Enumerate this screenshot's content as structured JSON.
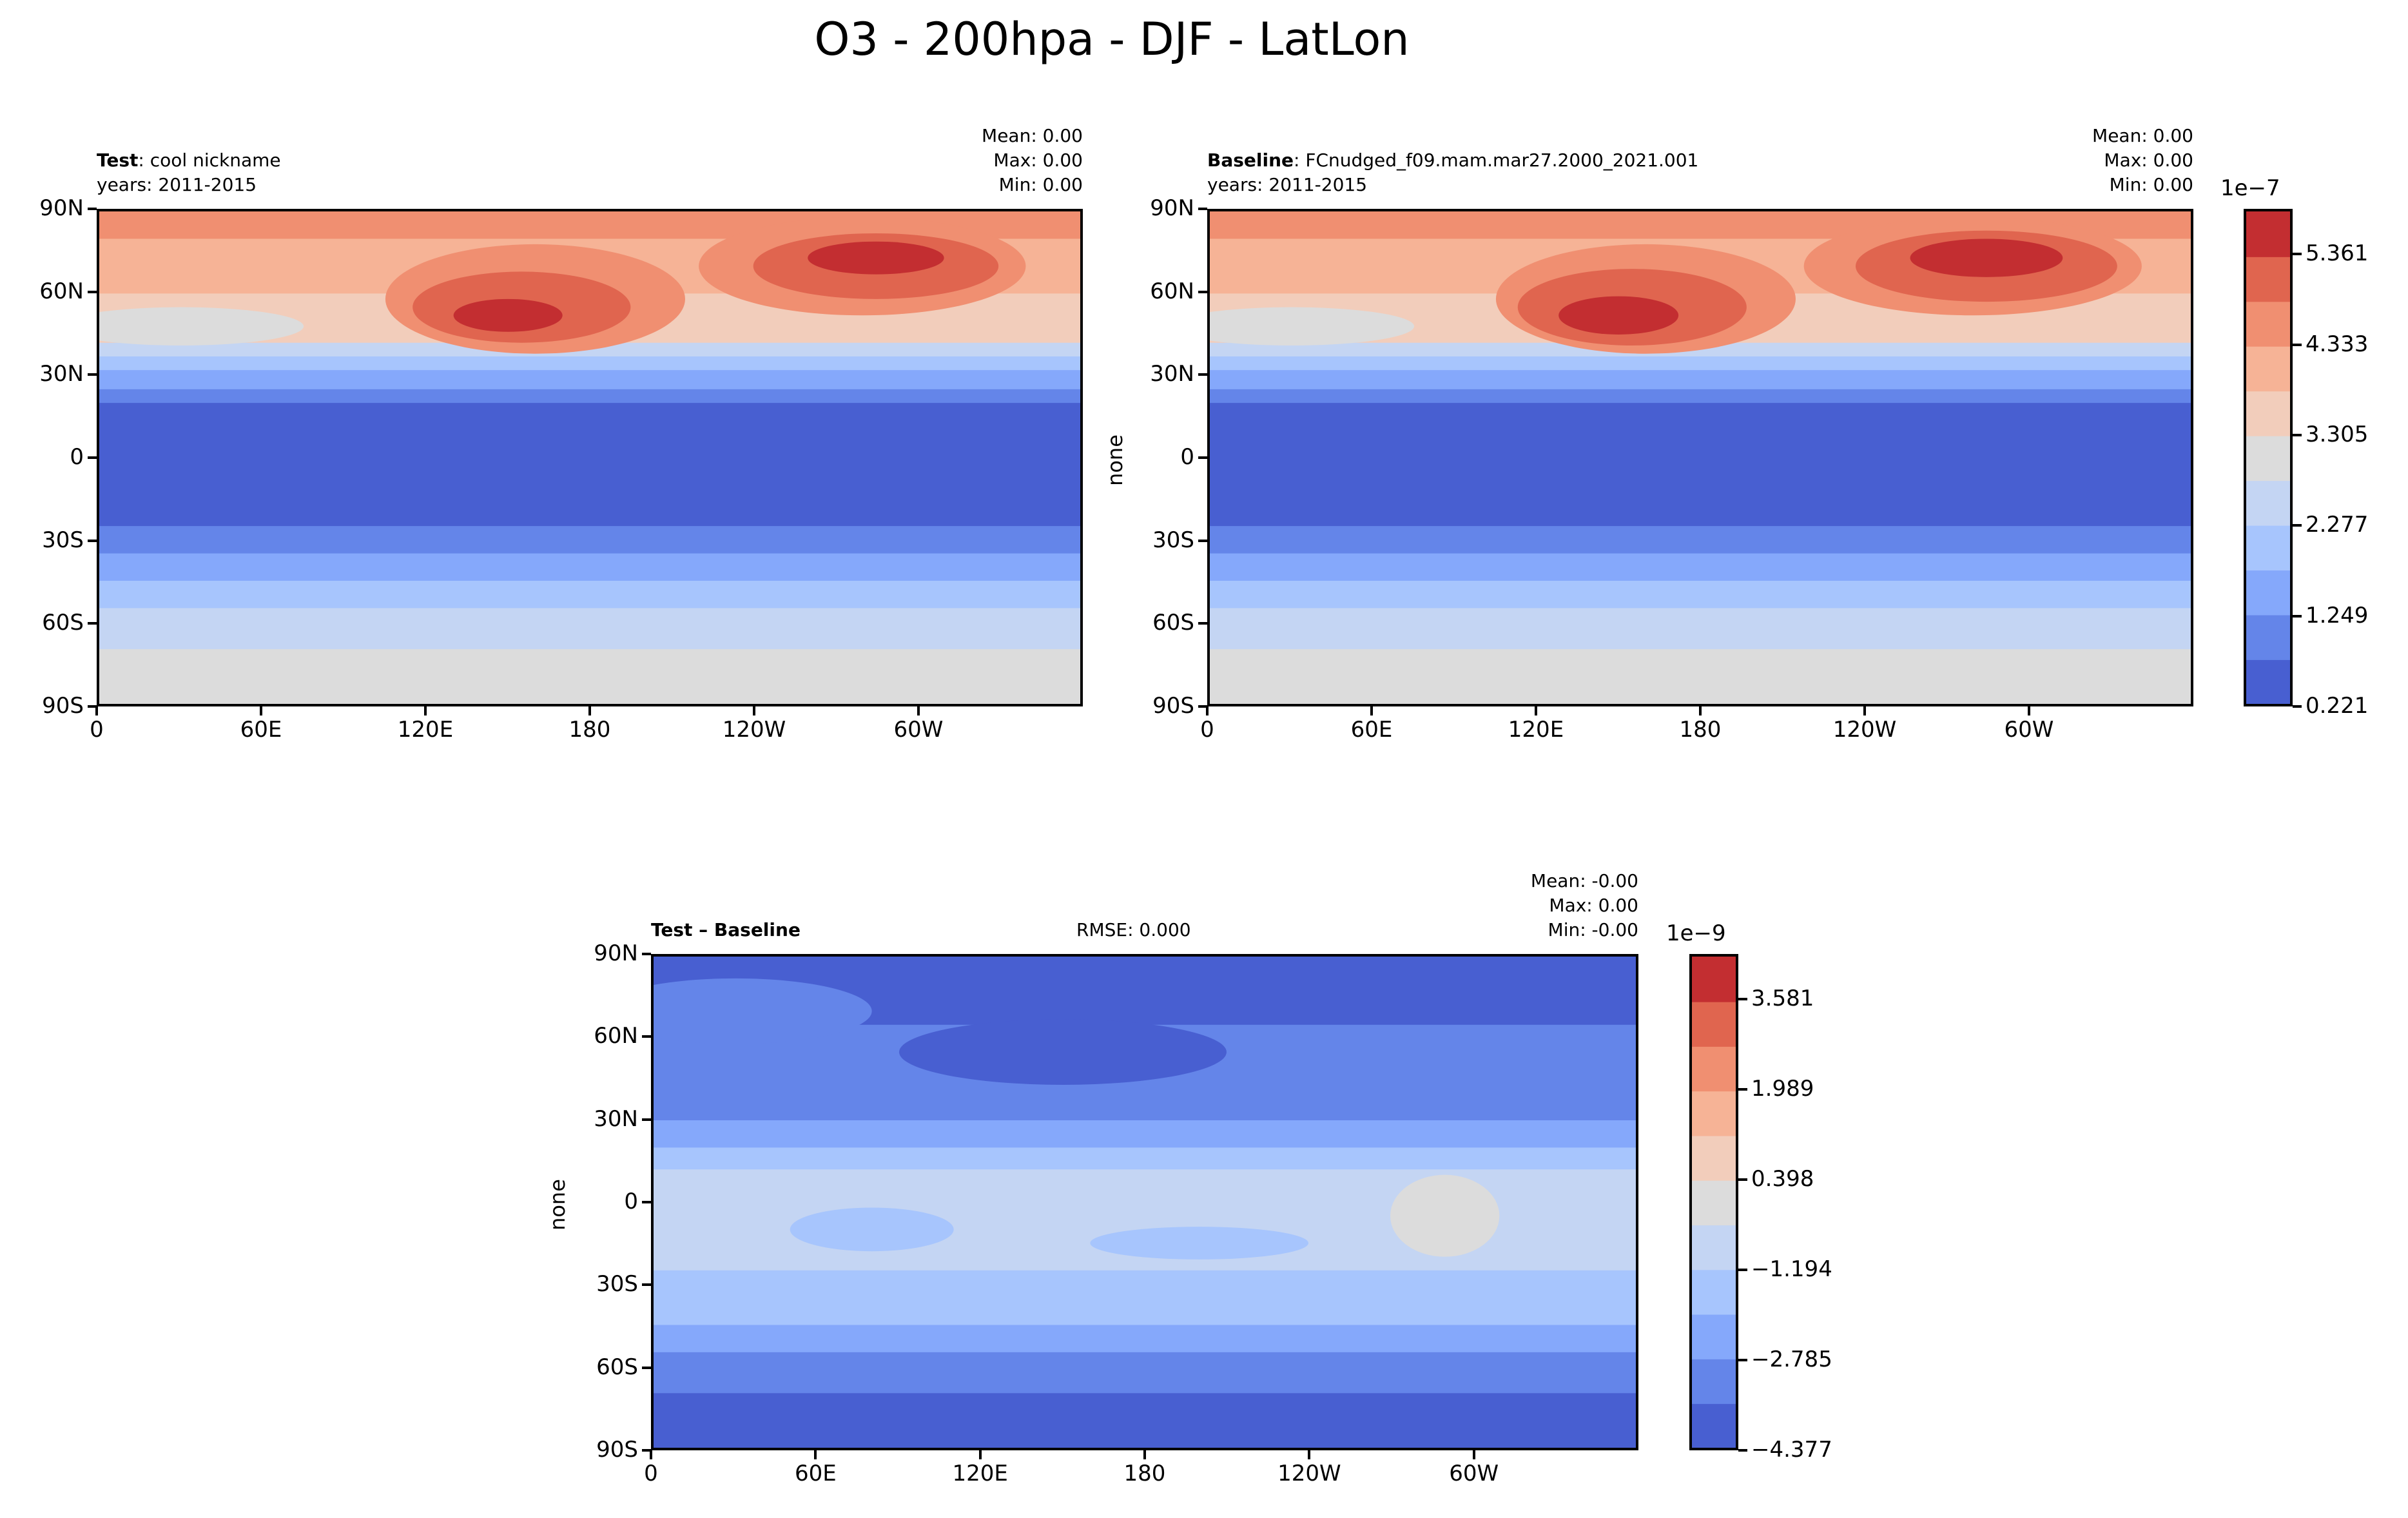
{
  "title": "O3 - 200hpa - DJF - LatLon",
  "colors": [
    "#485fd1",
    "#6485e9",
    "#85a8fb",
    "#a7c5fd",
    "#c4d5f3",
    "#dcdcdc",
    "#f2cdbb",
    "#f6b396",
    "#f08f71",
    "#e0654f",
    "#c32e31"
  ],
  "panels": [
    {
      "id": "test",
      "label_bold": "Test",
      "label_rest": ": cool nickname",
      "years": "years: 2011-2015",
      "mean": "Mean:  0.00",
      "max": "Max:  0.00",
      "min": "Min:  0.00",
      "ylabel": ""
    },
    {
      "id": "baseline",
      "label_bold": "Baseline",
      "label_rest": ": FCnudged_f09.mam.mar27.2000_2021.001",
      "years": "years: 2011-2015",
      "mean": "Mean:  0.00",
      "max": "Max:  0.00",
      "min": "Min:  0.00",
      "ylabel": "none"
    },
    {
      "id": "diff",
      "label_bold": "Test – Baseline",
      "rmse": "RMSE: 0.000",
      "mean": "Mean: -0.00",
      "max": "Max:  0.00",
      "min": "Min: -0.00",
      "ylabel": "none"
    }
  ],
  "xticks": [
    "0",
    "60E",
    "120E",
    "180",
    "120W",
    "60W"
  ],
  "yticks": [
    "90N",
    "60N",
    "30N",
    "0",
    "30S",
    "60S",
    "90S"
  ],
  "colorbars": [
    {
      "exponent": "1e−7",
      "ticks": [
        "0.221",
        "1.249",
        "2.277",
        "3.305",
        "4.333",
        "5.361"
      ]
    },
    {
      "exponent": "1e−9",
      "ticks": [
        "−4.377",
        "−2.785",
        "−1.194",
        "0.398",
        "1.989",
        "3.581"
      ]
    }
  ],
  "chart_data": [
    {
      "type": "heatmap",
      "panel": "test",
      "xlim": [
        0,
        360
      ],
      "ylim": [
        -90,
        90
      ],
      "levels": [
        0.221,
        0.735,
        1.249,
        1.763,
        2.277,
        2.791,
        3.305,
        3.819,
        4.333,
        4.847,
        5.361,
        5.875
      ],
      "level_scale": "1e-7",
      "bands": [
        {
          "lat": [
            80,
            90
          ],
          "level": 8
        },
        {
          "lat": [
            60,
            80
          ],
          "level": 7
        },
        {
          "lat": [
            50,
            60
          ],
          "level": 6
        },
        {
          "lat": [
            42,
            50
          ],
          "level": 6
        },
        {
          "lat": [
            37,
            42
          ],
          "level": 4
        },
        {
          "lat": [
            32,
            37
          ],
          "level": 3
        },
        {
          "lat": [
            25,
            32
          ],
          "level": 2
        },
        {
          "lat": [
            20,
            25
          ],
          "level": 1
        },
        {
          "lat": [
            -25,
            20
          ],
          "level": 0
        },
        {
          "lat": [
            -35,
            -25
          ],
          "level": 1
        },
        {
          "lat": [
            -45,
            -35
          ],
          "level": 2
        },
        {
          "lat": [
            -55,
            -45
          ],
          "level": 3
        },
        {
          "lat": [
            -70,
            -55
          ],
          "level": 4
        },
        {
          "lat": [
            -90,
            -70
          ],
          "level": 5
        }
      ],
      "features": [
        {
          "lon": 160,
          "lat": 58,
          "rlon": 55,
          "rlat": 20,
          "level": 8
        },
        {
          "lon": 155,
          "lat": 55,
          "rlon": 40,
          "rlat": 13,
          "level": 9
        },
        {
          "lon": 150,
          "lat": 52,
          "rlon": 20,
          "rlat": 6,
          "level": 10
        },
        {
          "lon": 280,
          "lat": 70,
          "rlon": 60,
          "rlat": 18,
          "level": 8
        },
        {
          "lon": 285,
          "lat": 70,
          "rlon": 45,
          "rlat": 12,
          "level": 9
        },
        {
          "lon": 285,
          "lat": 73,
          "rlon": 25,
          "rlat": 6,
          "level": 10
        },
        {
          "lon": 30,
          "lat": 48,
          "rlon": 45,
          "rlat": 7,
          "level": 5
        }
      ]
    },
    {
      "type": "heatmap",
      "panel": "baseline",
      "xlim": [
        0,
        360
      ],
      "ylim": [
        -90,
        90
      ],
      "levels": [
        0.221,
        0.735,
        1.249,
        1.763,
        2.277,
        2.791,
        3.305,
        3.819,
        4.333,
        4.847,
        5.361,
        5.875
      ],
      "level_scale": "1e-7",
      "bands": [
        {
          "lat": [
            80,
            90
          ],
          "level": 8
        },
        {
          "lat": [
            60,
            80
          ],
          "level": 7
        },
        {
          "lat": [
            50,
            60
          ],
          "level": 6
        },
        {
          "lat": [
            42,
            50
          ],
          "level": 6
        },
        {
          "lat": [
            37,
            42
          ],
          "level": 4
        },
        {
          "lat": [
            32,
            37
          ],
          "level": 3
        },
        {
          "lat": [
            25,
            32
          ],
          "level": 2
        },
        {
          "lat": [
            20,
            25
          ],
          "level": 1
        },
        {
          "lat": [
            -25,
            20
          ],
          "level": 0
        },
        {
          "lat": [
            -35,
            -25
          ],
          "level": 1
        },
        {
          "lat": [
            -45,
            -35
          ],
          "level": 2
        },
        {
          "lat": [
            -55,
            -45
          ],
          "level": 3
        },
        {
          "lat": [
            -70,
            -55
          ],
          "level": 4
        },
        {
          "lat": [
            -90,
            -70
          ],
          "level": 5
        }
      ],
      "features": [
        {
          "lon": 160,
          "lat": 58,
          "rlon": 55,
          "rlat": 20,
          "level": 8
        },
        {
          "lon": 155,
          "lat": 55,
          "rlon": 42,
          "rlat": 14,
          "level": 9
        },
        {
          "lon": 150,
          "lat": 52,
          "rlon": 22,
          "rlat": 7,
          "level": 10
        },
        {
          "lon": 280,
          "lat": 70,
          "rlon": 62,
          "rlat": 18,
          "level": 8
        },
        {
          "lon": 285,
          "lat": 70,
          "rlon": 48,
          "rlat": 13,
          "level": 9
        },
        {
          "lon": 285,
          "lat": 73,
          "rlon": 28,
          "rlat": 7,
          "level": 10
        },
        {
          "lon": 30,
          "lat": 48,
          "rlon": 45,
          "rlat": 7,
          "level": 5
        }
      ]
    },
    {
      "type": "heatmap",
      "panel": "diff",
      "xlim": [
        0,
        360
      ],
      "ylim": [
        -90,
        90
      ],
      "levels": [
        -4.377,
        -3.581,
        -2.785,
        -1.99,
        -1.194,
        -0.398,
        0.398,
        1.194,
        1.989,
        2.785,
        3.581,
        4.377
      ],
      "level_scale": "1e-9",
      "bands": [
        {
          "lat": [
            65,
            90
          ],
          "level": 0
        },
        {
          "lat": [
            30,
            65
          ],
          "level": 1
        },
        {
          "lat": [
            20,
            30
          ],
          "level": 2
        },
        {
          "lat": [
            12,
            20
          ],
          "level": 3
        },
        {
          "lat": [
            -25,
            12
          ],
          "level": 4
        },
        {
          "lat": [
            -45,
            -25
          ],
          "level": 3
        },
        {
          "lat": [
            -55,
            -45
          ],
          "level": 2
        },
        {
          "lat": [
            -70,
            -55
          ],
          "level": 1
        },
        {
          "lat": [
            -90,
            -70
          ],
          "level": 0
        }
      ],
      "features": [
        {
          "lon": 30,
          "lat": 70,
          "rlon": 50,
          "rlat": 12,
          "level": 1
        },
        {
          "lon": 150,
          "lat": 55,
          "rlon": 60,
          "rlat": 12,
          "level": 0
        },
        {
          "lon": 290,
          "lat": -5,
          "rlon": 20,
          "rlat": 15,
          "level": 5
        },
        {
          "lon": 80,
          "lat": -10,
          "rlon": 30,
          "rlat": 8,
          "level": 3
        },
        {
          "lon": 200,
          "lat": -15,
          "rlon": 40,
          "rlat": 6,
          "level": 3
        }
      ]
    }
  ]
}
